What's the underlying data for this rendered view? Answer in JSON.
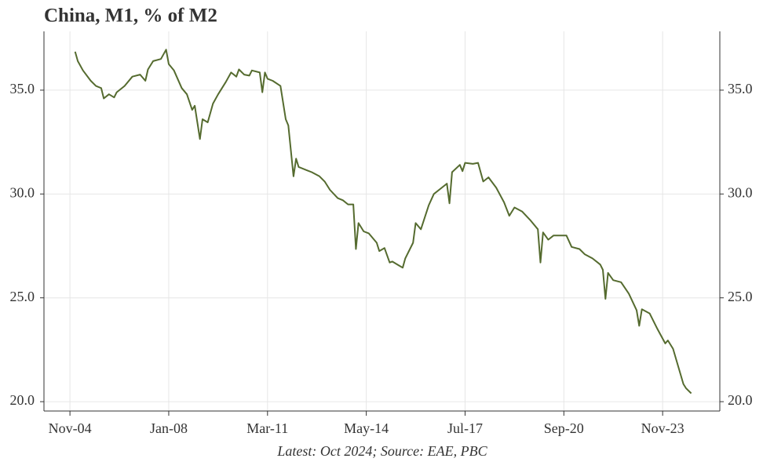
{
  "chart_data": {
    "type": "line",
    "title": "China, M1, % of M2",
    "note": "Latest: Oct 2024; Source: EAE, PBC",
    "x": [
      "Jan-05",
      "Feb-05",
      "Apr-05",
      "Jul-05",
      "Sep-05",
      "Nov-05",
      "Dec-05",
      "Feb-06",
      "Apr-06",
      "May-06",
      "Aug-06",
      "Nov-06",
      "Feb-07",
      "Apr-07",
      "May-07",
      "Jul-07",
      "Oct-07",
      "Dec-07",
      "Jan-08",
      "Mar-08",
      "Jun-08",
      "Aug-08",
      "Oct-08",
      "Nov-08",
      "Jan-09",
      "Feb-09",
      "Apr-09",
      "Jun-09",
      "Aug-09",
      "Nov-09",
      "Jan-10",
      "Mar-10",
      "Apr-10",
      "Jun-10",
      "Aug-10",
      "Sep-10",
      "Dec-10",
      "Jan-11",
      "Feb-11",
      "Mar-11",
      "May-11",
      "Aug-11",
      "Oct-11",
      "Nov-11",
      "Jan-12",
      "Feb-12",
      "Mar-12",
      "Jun-12",
      "Aug-12",
      "Nov-12",
      "Jan-13",
      "Mar-13",
      "Jun-13",
      "Aug-13",
      "Oct-13",
      "Dec-13",
      "Jan-14",
      "Feb-14",
      "Apr-14",
      "Jun-14",
      "Sep-14",
      "Oct-14",
      "Dec-14",
      "Feb-15",
      "Mar-15",
      "Jul-15",
      "Aug-15",
      "Nov-15",
      "Dec-15",
      "Feb-16",
      "May-16",
      "Jul-16",
      "Oct-16",
      "Dec-16",
      "Jan-17",
      "Feb-17",
      "May-17",
      "Jun-17",
      "Jul-17",
      "Oct-17",
      "Dec-17",
      "Feb-18",
      "Apr-18",
      "Jul-18",
      "Oct-18",
      "Dec-18",
      "Feb-19",
      "May-19",
      "Aug-19",
      "Nov-19",
      "Dec-19",
      "Jan-20",
      "Mar-20",
      "May-20",
      "Aug-20",
      "Oct-20",
      "Dec-20",
      "Mar-21",
      "May-21",
      "Aug-21",
      "Nov-21",
      "Dec-21",
      "Jan-22",
      "Feb-22",
      "Apr-22",
      "Jul-22",
      "Oct-22",
      "Jan-23",
      "Feb-23",
      "Mar-23",
      "Jun-23",
      "Sep-23",
      "Dec-23",
      "Jan-24",
      "Mar-24",
      "May-24",
      "Jul-24",
      "Aug-24",
      "Oct-24"
    ],
    "series": [
      {
        "name": "M1, % of M2",
        "color": "#556b2f",
        "values": [
          36.85,
          36.4,
          35.95,
          35.45,
          35.2,
          35.1,
          34.6,
          34.8,
          34.65,
          34.9,
          35.2,
          35.65,
          35.75,
          35.45,
          36.0,
          36.4,
          36.5,
          36.95,
          36.25,
          35.95,
          35.1,
          34.8,
          34.05,
          34.25,
          32.65,
          33.6,
          33.45,
          34.35,
          34.8,
          35.4,
          35.85,
          35.65,
          36.0,
          35.75,
          35.7,
          35.95,
          35.85,
          34.9,
          35.85,
          35.55,
          35.45,
          35.2,
          33.6,
          33.3,
          30.85,
          31.7,
          31.3,
          31.15,
          31.05,
          30.85,
          30.6,
          30.2,
          29.8,
          29.7,
          29.5,
          29.5,
          27.35,
          28.6,
          28.2,
          28.1,
          27.65,
          27.25,
          27.4,
          26.7,
          26.75,
          26.45,
          26.9,
          27.65,
          28.6,
          28.3,
          29.45,
          30.0,
          30.3,
          30.5,
          29.55,
          31.05,
          31.4,
          31.1,
          31.5,
          31.45,
          31.5,
          30.6,
          30.8,
          30.3,
          29.6,
          28.95,
          29.35,
          29.15,
          28.75,
          28.3,
          26.7,
          28.15,
          27.8,
          28.0,
          28.0,
          28.0,
          27.45,
          27.35,
          27.1,
          26.9,
          26.6,
          26.35,
          24.95,
          26.2,
          25.85,
          25.75,
          25.2,
          24.4,
          23.65,
          24.45,
          24.25,
          23.5,
          22.8,
          22.95,
          22.55,
          21.7,
          20.85,
          20.65,
          20.4
        ]
      }
    ],
    "xlim": [
      "Jan-04",
      "Sep-25"
    ],
    "xticks": [
      "Nov-04",
      "Jan-08",
      "Mar-11",
      "May-14",
      "Jul-17",
      "Sep-20",
      "Nov-23"
    ],
    "ylim": [
      19.55,
      37.83
    ],
    "yticks": [
      {
        "value": 20,
        "label": "20.0"
      },
      {
        "value": 25,
        "label": "25.0"
      },
      {
        "value": 30,
        "label": "30.0"
      },
      {
        "value": 35,
        "label": "35.0"
      }
    ],
    "grid": true
  }
}
